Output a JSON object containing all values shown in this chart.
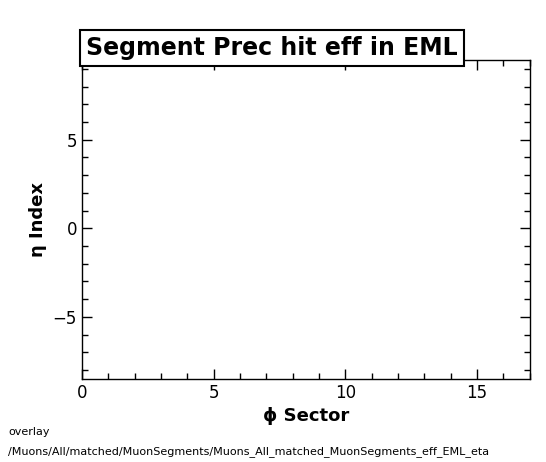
{
  "title": "Segment Prec hit eff in EML",
  "xlabel": "ϕ Sector",
  "ylabel": "η Index",
  "xlim": [
    0,
    17
  ],
  "ylim": [
    -8.5,
    9.5
  ],
  "xticks": [
    0,
    5,
    10,
    15
  ],
  "yticks": [
    -5,
    0,
    5
  ],
  "background_color": "#ffffff",
  "plot_bg_color": "#ffffff",
  "footer_line1": "overlay",
  "footer_line2": "/Muons/All/matched/MuonSegments/Muons_All_matched_MuonSegments_eff_EML_eta",
  "title_fontsize": 17,
  "axis_label_fontsize": 13,
  "tick_fontsize": 12,
  "footer_fontsize": 8
}
